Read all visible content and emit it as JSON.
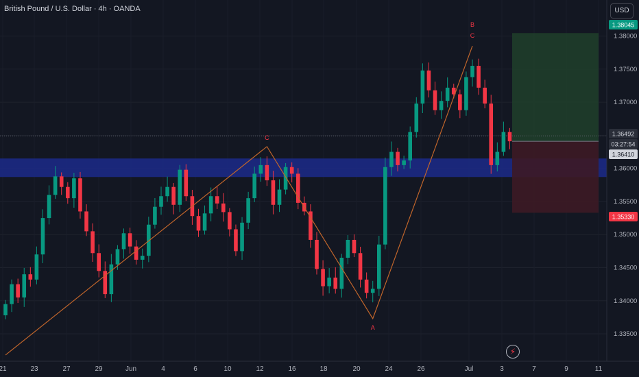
{
  "header": {
    "title": "British Pound / U.S. Dollar · 4h · OANDA",
    "currency": "USD"
  },
  "icons": {
    "alert": "lightning-icon"
  },
  "colors": {
    "up": "#089981",
    "down": "#f23645",
    "zone": "#1c2a8a",
    "pattern": "#c0652b",
    "target": "#1f3d2a",
    "stop": "#3d1a25",
    "background": "#131722"
  },
  "chart_data": {
    "type": "candlestick",
    "symbol": "GBPUSD",
    "ylim": [
      1.332,
      1.384
    ],
    "y_ticks": [
      1.335,
      1.34,
      1.345,
      1.35,
      1.355,
      1.36,
      1.365,
      1.37,
      1.375,
      1.38
    ],
    "y_tick_labels": [
      "1.33500",
      "1.34000",
      "1.34500",
      "1.35000",
      "1.35500",
      "1.36000",
      "1.36500",
      "1.37000",
      "1.37500",
      "1.38000"
    ],
    "x_tick_labels": [
      "21",
      "23",
      "27",
      "29",
      "Jun",
      "4",
      "6",
      "10",
      "12",
      "16",
      "18",
      "20",
      "24",
      "26",
      "Jul",
      "3",
      "7",
      "9",
      "11"
    ],
    "price_badges": [
      {
        "label": "1.38045",
        "value": 1.38045,
        "color": "#089981"
      },
      {
        "label": "1.36492",
        "value": 1.36492,
        "color": "#b2b5be"
      },
      {
        "label": "03:27:54",
        "value": 1.3639,
        "color": "#b2b5be"
      },
      {
        "label": "1.36410",
        "value": 1.3641,
        "color": "#ffffff"
      },
      {
        "label": "1.35330",
        "value": 1.3533,
        "color": "#f23645"
      }
    ],
    "zone": {
      "low": 1.3587,
      "high": 1.3615
    },
    "position": {
      "entry": 1.3641,
      "target": 1.38045,
      "stop": 1.3533
    },
    "last_price": 1.36492,
    "pattern_points": [
      {
        "label": "",
        "i": 0,
        "price": 1.3318
      },
      {
        "label": "C",
        "i": 42,
        "price": 1.3633
      },
      {
        "label": "A",
        "i": 59,
        "price": 1.3373
      },
      {
        "label": "B",
        "i": 75,
        "price": 1.3785
      },
      {
        "label": "C",
        "i": 75,
        "price": 1.3785
      }
    ],
    "candle_start": 1.3378,
    "closes": [
      1.3395,
      1.3425,
      1.3405,
      1.344,
      1.3432,
      1.347,
      1.3525,
      1.356,
      1.3588,
      1.3572,
      1.3555,
      1.3585,
      1.3535,
      1.3505,
      1.3472,
      1.3445,
      1.341,
      1.3455,
      1.3478,
      1.3502,
      1.3482,
      1.3462,
      1.3468,
      1.3515,
      1.3542,
      1.3558,
      1.3572,
      1.3545,
      1.3598,
      1.3558,
      1.3528,
      1.3506,
      1.3532,
      1.3558,
      1.3547,
      1.3534,
      1.3508,
      1.3475,
      1.3518,
      1.3555,
      1.3592,
      1.3605,
      1.3582,
      1.3545,
      1.3568,
      1.3602,
      1.3592,
      1.3548,
      1.3535,
      1.3492,
      1.3448,
      1.3422,
      1.3435,
      1.3418,
      1.3465,
      1.3492,
      1.3472,
      1.3432,
      1.3412,
      1.3418,
      1.3485,
      1.3602,
      1.3625,
      1.3605,
      1.3612,
      1.3655,
      1.3698,
      1.3748,
      1.3718,
      1.3688,
      1.3702,
      1.3722,
      1.3712,
      1.3688,
      1.3738,
      1.3755,
      1.3722,
      1.3698,
      1.3605,
      1.3625,
      1.3655,
      1.3641
    ],
    "candle_range": [
      1.3378,
      1.3651
    ]
  }
}
